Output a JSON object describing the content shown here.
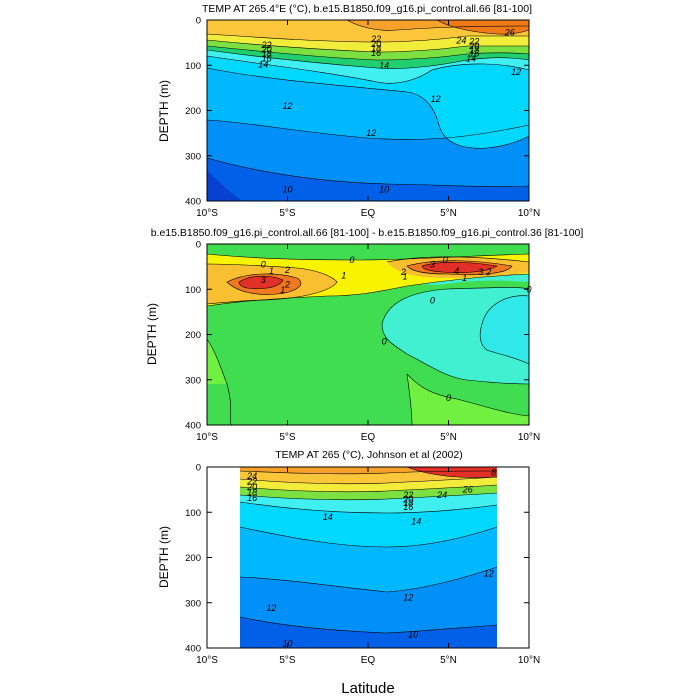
{
  "figure": {
    "shared_xlabel": "Latitude"
  },
  "chart_data": [
    {
      "type": "contour",
      "title": "TEMP AT 265.4°E (°C), b.e15.B1850.f09_g16.pi_control.all.66 [81-100]",
      "ylabel": "DEPTH (m)",
      "xlim": [
        -10,
        10
      ],
      "ylim": [
        400,
        0
      ],
      "xticks": [
        -10,
        -5,
        0,
        5,
        10
      ],
      "xtick_labels": [
        "10°S",
        "5°S",
        "EQ",
        "5°N",
        "10°N"
      ],
      "yticks": [
        0,
        100,
        200,
        300,
        400
      ],
      "ytick_labels": [
        "0",
        "100",
        "200",
        "300",
        "400"
      ],
      "colors": {
        "warm_26": "#f07a18",
        "warm_24": "#f7a02a",
        "warm_22": "#fbc63a",
        "mid_18": "#f2ec3a",
        "mid_16": "#7be040",
        "mid_15": "#20d070",
        "cool_14": "#40f0f0",
        "cool_13": "#00d8ff",
        "cool_12": "#00b8ff",
        "deep_11": "#0090f8",
        "deep_10": "#0060e8",
        "deep_9": "#0840d0"
      },
      "contour_labels": [
        {
          "lat": -6.3,
          "depth": 55,
          "text": "22"
        },
        {
          "lat": -6.3,
          "depth": 65,
          "text": "20"
        },
        {
          "lat": -6.3,
          "depth": 75,
          "text": "18"
        },
        {
          "lat": -6.3,
          "depth": 85,
          "text": "16"
        },
        {
          "lat": -6.5,
          "depth": 98,
          "text": "14"
        },
        {
          "lat": 0.5,
          "depth": 42,
          "text": "22"
        },
        {
          "lat": 0.5,
          "depth": 53,
          "text": "20"
        },
        {
          "lat": 0.5,
          "depth": 63,
          "text": "18"
        },
        {
          "lat": 0.5,
          "depth": 73,
          "text": "16"
        },
        {
          "lat": 1.0,
          "depth": 100,
          "text": "14"
        },
        {
          "lat": 5.8,
          "depth": 45,
          "text": "24"
        },
        {
          "lat": 6.6,
          "depth": 48,
          "text": "22"
        },
        {
          "lat": 6.6,
          "depth": 58,
          "text": "20"
        },
        {
          "lat": 6.6,
          "depth": 66,
          "text": "18"
        },
        {
          "lat": 6.6,
          "depth": 74,
          "text": "16"
        },
        {
          "lat": 6.4,
          "depth": 85,
          "text": "14"
        },
        {
          "lat": 8.8,
          "depth": 28,
          "text": "26"
        },
        {
          "lat": 9.2,
          "depth": 115,
          "text": "12"
        },
        {
          "lat": -5.0,
          "depth": 190,
          "text": "12"
        },
        {
          "lat": 4.2,
          "depth": 175,
          "text": "12"
        },
        {
          "lat": 0.2,
          "depth": 250,
          "text": "12"
        },
        {
          "lat": -5.0,
          "depth": 375,
          "text": "10"
        },
        {
          "lat": 1.0,
          "depth": 375,
          "text": "10"
        }
      ]
    },
    {
      "type": "contour",
      "title": "b.e15.B1850.f09_g16.pi_control.all.66 [81-100] - b.e15.B1850.f09_g16.pi_control.36 [81-100]",
      "ylabel": "DEPTH (m)",
      "xlim": [
        -10,
        10
      ],
      "ylim": [
        400,
        0
      ],
      "xticks": [
        -10,
        -5,
        0,
        5,
        10
      ],
      "xtick_labels": [
        "10°S",
        "5°S",
        "EQ",
        "5°N",
        "10°N"
      ],
      "yticks": [
        0,
        100,
        200,
        300,
        400
      ],
      "ytick_labels": [
        "0",
        "100",
        "200",
        "300",
        "400"
      ],
      "colors": {
        "zero_band": "#40dd50",
        "pos_small": "#f8f400",
        "pos_mid": "#f8c030",
        "pos_high": "#f07820",
        "pos_max": "#e03028",
        "neg_small": "#40f0d0",
        "neg_mid": "#30e8e8",
        "light_green": "#70f040"
      },
      "contour_labels": [
        {
          "lat": -6.5,
          "depth": 45,
          "text": "0"
        },
        {
          "lat": -6.0,
          "depth": 60,
          "text": "1"
        },
        {
          "lat": -5.0,
          "depth": 58,
          "text": "2"
        },
        {
          "lat": -6.5,
          "depth": 80,
          "text": "3"
        },
        {
          "lat": -5.0,
          "depth": 90,
          "text": "2"
        },
        {
          "lat": -5.3,
          "depth": 102,
          "text": "1"
        },
        {
          "lat": -1.0,
          "depth": 35,
          "text": "0"
        },
        {
          "lat": -1.5,
          "depth": 70,
          "text": "1"
        },
        {
          "lat": 2.2,
          "depth": 62,
          "text": "2"
        },
        {
          "lat": 2.3,
          "depth": 72,
          "text": "1"
        },
        {
          "lat": 4.0,
          "depth": 45,
          "text": "3"
        },
        {
          "lat": 4.8,
          "depth": 35,
          "text": "0"
        },
        {
          "lat": 5.5,
          "depth": 60,
          "text": "4"
        },
        {
          "lat": 7.0,
          "depth": 62,
          "text": "3"
        },
        {
          "lat": 7.5,
          "depth": 62,
          "text": "2"
        },
        {
          "lat": 6.0,
          "depth": 75,
          "text": "1"
        },
        {
          "lat": 4.0,
          "depth": 125,
          "text": "0"
        },
        {
          "lat": 10.0,
          "depth": 100,
          "text": "0"
        },
        {
          "lat": 1.0,
          "depth": 215,
          "text": "0"
        },
        {
          "lat": 5.0,
          "depth": 340,
          "text": "0"
        }
      ]
    },
    {
      "type": "contour",
      "title": "TEMP AT 265 (°C), Johnson et al (2002)",
      "ylabel": "DEPTH (m)",
      "xlim": [
        -10,
        10
      ],
      "ylim": [
        400,
        0
      ],
      "xticks": [
        -10,
        -5,
        0,
        5,
        10
      ],
      "xtick_labels": [
        "10°S",
        "5°S",
        "EQ",
        "5°N",
        "10°N"
      ],
      "yticks": [
        0,
        100,
        200,
        300,
        400
      ],
      "ytick_labels": [
        "0",
        "100",
        "200",
        "300",
        "400"
      ],
      "xlabel": "Latitude",
      "data_extent_lat": [
        -8,
        8
      ],
      "contour_labels": [
        {
          "lat": -7.2,
          "depth": 20,
          "text": "24"
        },
        {
          "lat": -7.2,
          "depth": 32,
          "text": "22"
        },
        {
          "lat": -7.2,
          "depth": 44,
          "text": "20"
        },
        {
          "lat": -7.2,
          "depth": 56,
          "text": "18"
        },
        {
          "lat": -7.2,
          "depth": 68,
          "text": "16"
        },
        {
          "lat": -2.5,
          "depth": 110,
          "text": "14"
        },
        {
          "lat": 3.0,
          "depth": 120,
          "text": "14"
        },
        {
          "lat": 2.5,
          "depth": 62,
          "text": "22"
        },
        {
          "lat": 2.5,
          "depth": 72,
          "text": "20"
        },
        {
          "lat": 2.5,
          "depth": 80,
          "text": "18"
        },
        {
          "lat": 2.5,
          "depth": 88,
          "text": "16"
        },
        {
          "lat": 4.6,
          "depth": 62,
          "text": "24"
        },
        {
          "lat": 6.2,
          "depth": 50,
          "text": "26"
        },
        {
          "lat": 7.8,
          "depth": 12,
          "text": "8"
        },
        {
          "lat": 7.5,
          "depth": 235,
          "text": "12"
        },
        {
          "lat": -6.0,
          "depth": 312,
          "text": "12"
        },
        {
          "lat": 2.5,
          "depth": 288,
          "text": "12"
        },
        {
          "lat": -5.0,
          "depth": 390,
          "text": "10"
        },
        {
          "lat": 2.8,
          "depth": 370,
          "text": "10"
        }
      ]
    }
  ]
}
